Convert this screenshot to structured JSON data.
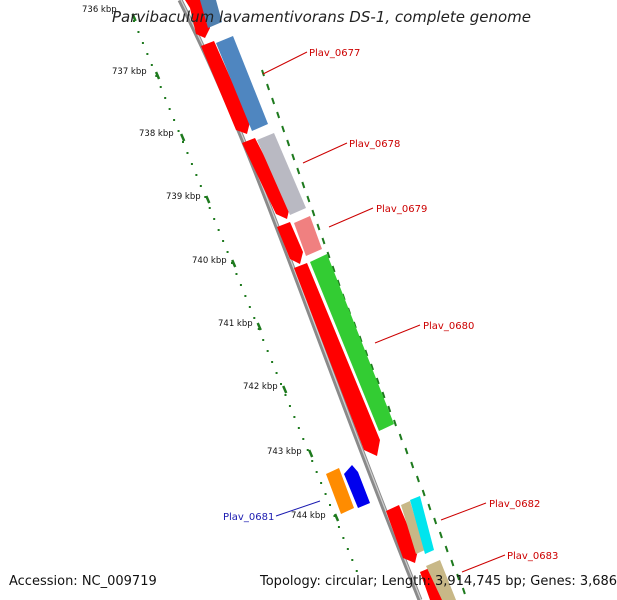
{
  "title": "Parvibaculum lavamentivorans DS-1, complete genome",
  "footer": {
    "accession": "Accession: NC_009719",
    "topology": "Topology: circular; Length: 3,914,745 bp; Genes: 3,686"
  },
  "colors": {
    "backbone": "#8a8a8a",
    "tick": "#1e7a1e",
    "label_red": "#cc0000",
    "label_blue": "#1a1ab0"
  },
  "ticks": [
    {
      "label": "736 kbp"
    },
    {
      "label": "737 kbp"
    },
    {
      "label": "738 kbp"
    },
    {
      "label": "739 kbp"
    },
    {
      "label": "740 kbp"
    },
    {
      "label": "741 kbp"
    },
    {
      "label": "742 kbp"
    },
    {
      "label": "743 kbp"
    },
    {
      "label": "744 kbp"
    }
  ],
  "gene_labels": [
    {
      "name": "Plav_0677"
    },
    {
      "name": "Plav_0678"
    },
    {
      "name": "Plav_0679"
    },
    {
      "name": "Plav_0680"
    },
    {
      "name": "Plav_0681"
    },
    {
      "name": "Plav_0682"
    },
    {
      "name": "Plav_0683"
    }
  ]
}
